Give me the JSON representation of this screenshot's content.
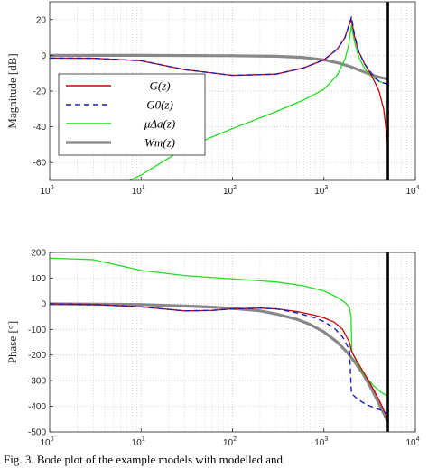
{
  "caption": "Fig. 3. Bode plot of the example models with modelled and",
  "chart_data": [
    {
      "type": "line",
      "title": "",
      "xlabel": "",
      "ylabel": "Magnitude [dB]",
      "xscale": "log",
      "xlim": [
        1,
        10000
      ],
      "ylim": [
        -70,
        30
      ],
      "yticks": [
        20,
        0,
        -20,
        -40,
        -60
      ],
      "grid": true,
      "vertical_line_x": 5000,
      "legend": {
        "placement": "left",
        "entries": [
          "G(z)",
          "G0(z)",
          "μΔa(z)",
          "Wm(z)"
        ]
      },
      "series": [
        {
          "name": "G(z)",
          "color": "#cc0000",
          "style": "solid",
          "x": [
            1,
            3,
            10,
            30,
            100,
            300,
            600,
            1000,
            1400,
            1700,
            1850,
            2000,
            2150,
            2400,
            2800,
            3200,
            3600,
            4000,
            4500,
            5000
          ],
          "y": [
            -1.5,
            -1.6,
            -3,
            -8,
            -11.2,
            -10.5,
            -7,
            -2.5,
            3.5,
            10,
            16,
            20,
            11,
            2,
            -5,
            -10,
            -15,
            -20,
            -30,
            -50
          ]
        },
        {
          "name": "G0(z)",
          "color": "#1a1acc",
          "style": "dashed",
          "x": [
            1,
            3,
            10,
            30,
            100,
            300,
            600,
            1000,
            1400,
            1700,
            1850,
            2000,
            2150,
            2400,
            2800,
            3200,
            3600,
            4000,
            4500,
            5000
          ],
          "y": [
            -1.5,
            -1.6,
            -3,
            -8,
            -11.2,
            -10.5,
            -7,
            -2.5,
            3.5,
            10,
            16,
            21.5,
            12,
            2,
            -5,
            -9,
            -12.5,
            -14.5,
            -15.5,
            -16
          ]
        },
        {
          "name": "μΔa(z)",
          "color": "#22dd22",
          "style": "solid",
          "x": [
            7.5,
            10,
            30,
            100,
            300,
            600,
            1000,
            1400,
            1700,
            1850,
            2000,
            2150,
            2400,
            2800,
            3200,
            3600,
            4000,
            4500,
            5000
          ],
          "y": [
            -70,
            -67,
            -52,
            -41,
            -31.5,
            -25,
            -19,
            -11,
            -2,
            5,
            17,
            8,
            -1,
            -7.5,
            -11,
            -13,
            -14.5,
            -15.5,
            -16
          ]
        },
        {
          "name": "Wm(z)",
          "color": "#888888",
          "style": "solid",
          "x": [
            1,
            10,
            100,
            300,
            600,
            1000,
            1500,
            2000,
            2500,
            3000,
            3500,
            4000,
            4500,
            5000
          ],
          "y": [
            0,
            0,
            -0.2,
            -0.5,
            -1.2,
            -2.5,
            -4.5,
            -6.5,
            -8.5,
            -10,
            -11.3,
            -12.2,
            -12.8,
            -13.3
          ]
        }
      ]
    },
    {
      "type": "line",
      "title": "",
      "xlabel": "",
      "ylabel": "Phase [°]",
      "xscale": "log",
      "xlim": [
        1,
        10000
      ],
      "ylim": [
        -500,
        200
      ],
      "yticks": [
        200,
        100,
        0,
        -100,
        -200,
        -300,
        -400,
        -500
      ],
      "grid": true,
      "vertical_line_x": 5000,
      "series": [
        {
          "name": "G(z)",
          "color": "#cc0000",
          "style": "solid",
          "x": [
            1,
            3,
            10,
            30,
            60,
            100,
            200,
            300,
            500,
            800,
            1000,
            1300,
            1600,
            1900,
            2000,
            2300,
            2800,
            3500,
            4200,
            5000
          ],
          "y": [
            -0.5,
            -3,
            -12,
            -28,
            -26,
            -20,
            -17,
            -20,
            -30,
            -45,
            -55,
            -72,
            -100,
            -150,
            -185,
            -225,
            -275,
            -335,
            -390,
            -450
          ]
        },
        {
          "name": "G0(z)",
          "color": "#1a1acc",
          "style": "dashed",
          "x": [
            1,
            3,
            10,
            30,
            60,
            100,
            200,
            300,
            500,
            800,
            1000,
            1300,
            1600,
            1900,
            2000,
            2300,
            2800,
            3500,
            4200,
            5000
          ],
          "y": [
            -0.5,
            -3,
            -12,
            -28,
            -26,
            -20,
            -17,
            -20,
            -35,
            -55,
            -70,
            -95,
            -130,
            -180,
            -350,
            -370,
            -390,
            -405,
            -415,
            -430
          ]
        },
        {
          "name": "μΔa(z)",
          "color": "#22dd22",
          "style": "solid",
          "x": [
            1,
            3,
            10,
            30,
            100,
            300,
            600,
            1000,
            1400,
            1700,
            1900,
            1980,
            2020,
            2100,
            2400,
            2800,
            3500,
            4200,
            5000
          ],
          "y": [
            178,
            172,
            130,
            110,
            97,
            85,
            70,
            50,
            25,
            5,
            -15,
            -50,
            -185,
            -200,
            -240,
            -280,
            -320,
            -345,
            -360
          ]
        },
        {
          "name": "Wm(z)",
          "color": "#888888",
          "style": "solid",
          "x": [
            1,
            10,
            50,
            100,
            200,
            300,
            500,
            700,
            1000,
            1400,
            1800,
            2200,
            2700,
            3300,
            4000,
            5000
          ],
          "y": [
            -0.5,
            -3,
            -12,
            -18,
            -28,
            -40,
            -60,
            -80,
            -110,
            -150,
            -190,
            -230,
            -275,
            -330,
            -390,
            -460
          ]
        }
      ]
    }
  ]
}
